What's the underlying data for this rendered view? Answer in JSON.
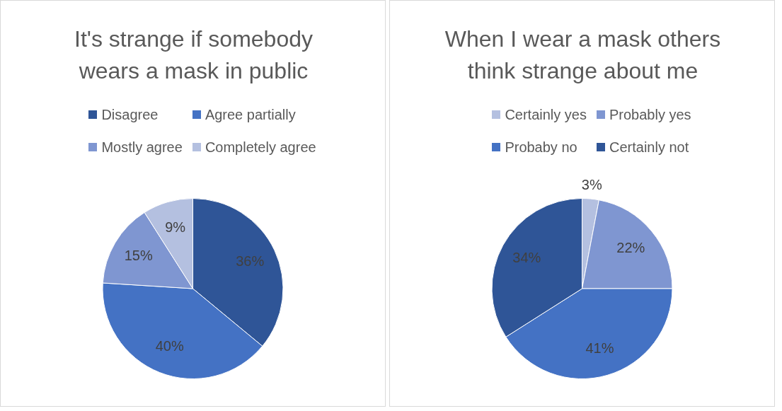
{
  "chart_data": [
    {
      "type": "pie",
      "title": "It's strange if somebody wears a mask in public",
      "categories": [
        "Disagree",
        "Agree partially",
        "Mostly agree",
        "Completely agree"
      ],
      "values": [
        36,
        40,
        15,
        9
      ],
      "colors": [
        "#2f5597",
        "#4472c4",
        "#7f96d1",
        "#b4c0e0"
      ],
      "legend": "top",
      "value_labels": [
        "36%",
        "40%",
        "15%",
        "9%"
      ]
    },
    {
      "type": "pie",
      "title": "When I wear a mask others think strange about me",
      "categories": [
        "Certainly yes",
        "Probably yes",
        "Probaby no",
        "Certainly not"
      ],
      "values": [
        3,
        22,
        41,
        34
      ],
      "colors": [
        "#b4c0e0",
        "#7f96d1",
        "#4472c4",
        "#2f5597"
      ],
      "legend": "top",
      "value_labels": [
        "3%",
        "22%",
        "41%",
        "34%"
      ]
    }
  ]
}
